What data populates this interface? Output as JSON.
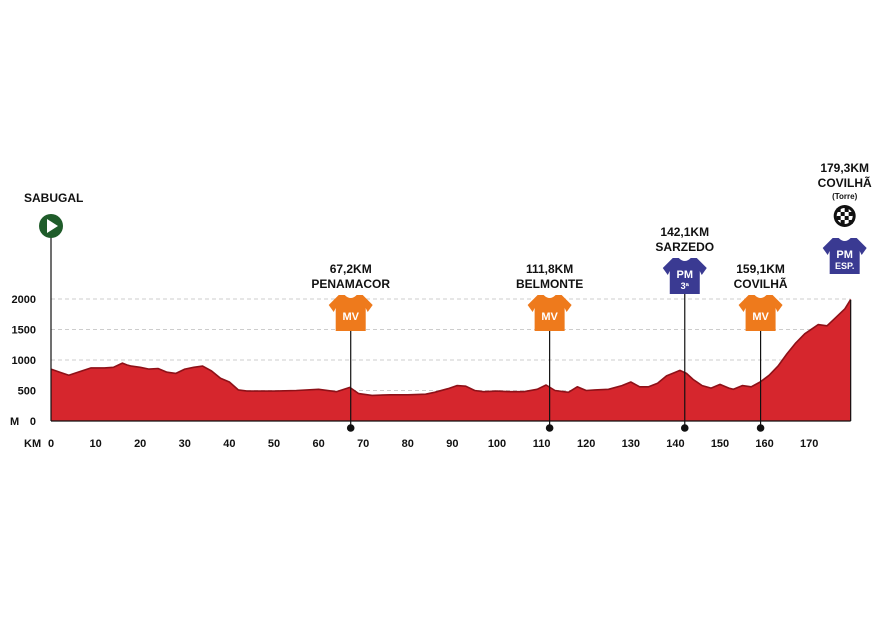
{
  "chart_data": {
    "type": "area",
    "xlabel": "KM",
    "ylabel": "M",
    "xlim": [
      0,
      179.3
    ],
    "ylim": [
      0,
      2000
    ],
    "x_ticks": [
      0,
      10,
      20,
      30,
      40,
      50,
      60,
      70,
      80,
      90,
      100,
      110,
      120,
      130,
      140,
      150,
      160,
      170
    ],
    "y_ticks": [
      0,
      500,
      1000,
      1500,
      2000
    ],
    "grid": "horizontal dashed",
    "fill_color": "#d6262d",
    "line_color": "#8e1118",
    "series": [
      {
        "x": [
          0,
          2,
          4,
          6,
          9,
          12,
          14,
          16,
          17,
          18,
          20,
          22,
          24,
          26,
          28,
          30,
          32,
          34,
          36,
          38,
          40,
          42,
          44,
          47,
          50,
          55,
          60,
          64,
          67,
          69,
          72,
          76,
          80,
          84,
          86,
          89,
          91,
          93,
          95,
          97,
          100,
          103,
          106,
          109,
          111,
          113,
          116,
          118,
          120,
          122,
          125,
          128,
          130,
          132,
          134,
          136,
          138,
          140,
          141,
          142.5,
          144,
          146,
          148,
          150,
          152,
          153,
          155,
          157,
          159,
          161,
          163,
          165,
          167,
          169,
          171,
          172,
          174,
          176,
          178,
          179.3
        ],
        "y": [
          850,
          800,
          750,
          800,
          870,
          870,
          880,
          950,
          920,
          900,
          880,
          850,
          860,
          800,
          780,
          850,
          880,
          900,
          820,
          700,
          640,
          510,
          490,
          490,
          490,
          500,
          520,
          480,
          550,
          450,
          420,
          430,
          430,
          440,
          470,
          530,
          580,
          570,
          500,
          480,
          490,
          480,
          480,
          520,
          590,
          500,
          470,
          560,
          500,
          510,
          520,
          580,
          640,
          560,
          560,
          620,
          740,
          800,
          830,
          780,
          680,
          580,
          540,
          600,
          540,
          520,
          580,
          560,
          640,
          750,
          900,
          1100,
          1280,
          1430,
          1530,
          1580,
          1560,
          1700,
          1840,
          1993
        ]
      }
    ],
    "start": {
      "name": "SABUGAL"
    },
    "annotations": [
      {
        "km": 67.2,
        "km_label": "67,2KM",
        "place": "PENAMACOR",
        "jersey": "MV",
        "jersey_color": "#ee7a1c"
      },
      {
        "km": 111.8,
        "km_label": "111,8KM",
        "place": "BELMONTE",
        "jersey": "MV",
        "jersey_color": "#ee7a1c"
      },
      {
        "km": 142.1,
        "km_label": "142,1KM",
        "place": "SARZEDO",
        "jersey": "PM",
        "jersey_sub": "3ª",
        "jersey_color": "#3a3a92"
      },
      {
        "km": 159.1,
        "km_label": "159,1KM",
        "place": "COVILHÃ",
        "jersey": "MV",
        "jersey_color": "#ee7a1c"
      }
    ],
    "finish": {
      "km": 179.3,
      "km_label": "179,3KM",
      "place": "COVILHÃ",
      "note": "(Torre)",
      "jersey": "PM",
      "jersey_sub": "ESP.",
      "jersey_color": "#3a3a92"
    },
    "start_icon": "play-icon",
    "finish_icon": "checkered-flag-icon"
  }
}
